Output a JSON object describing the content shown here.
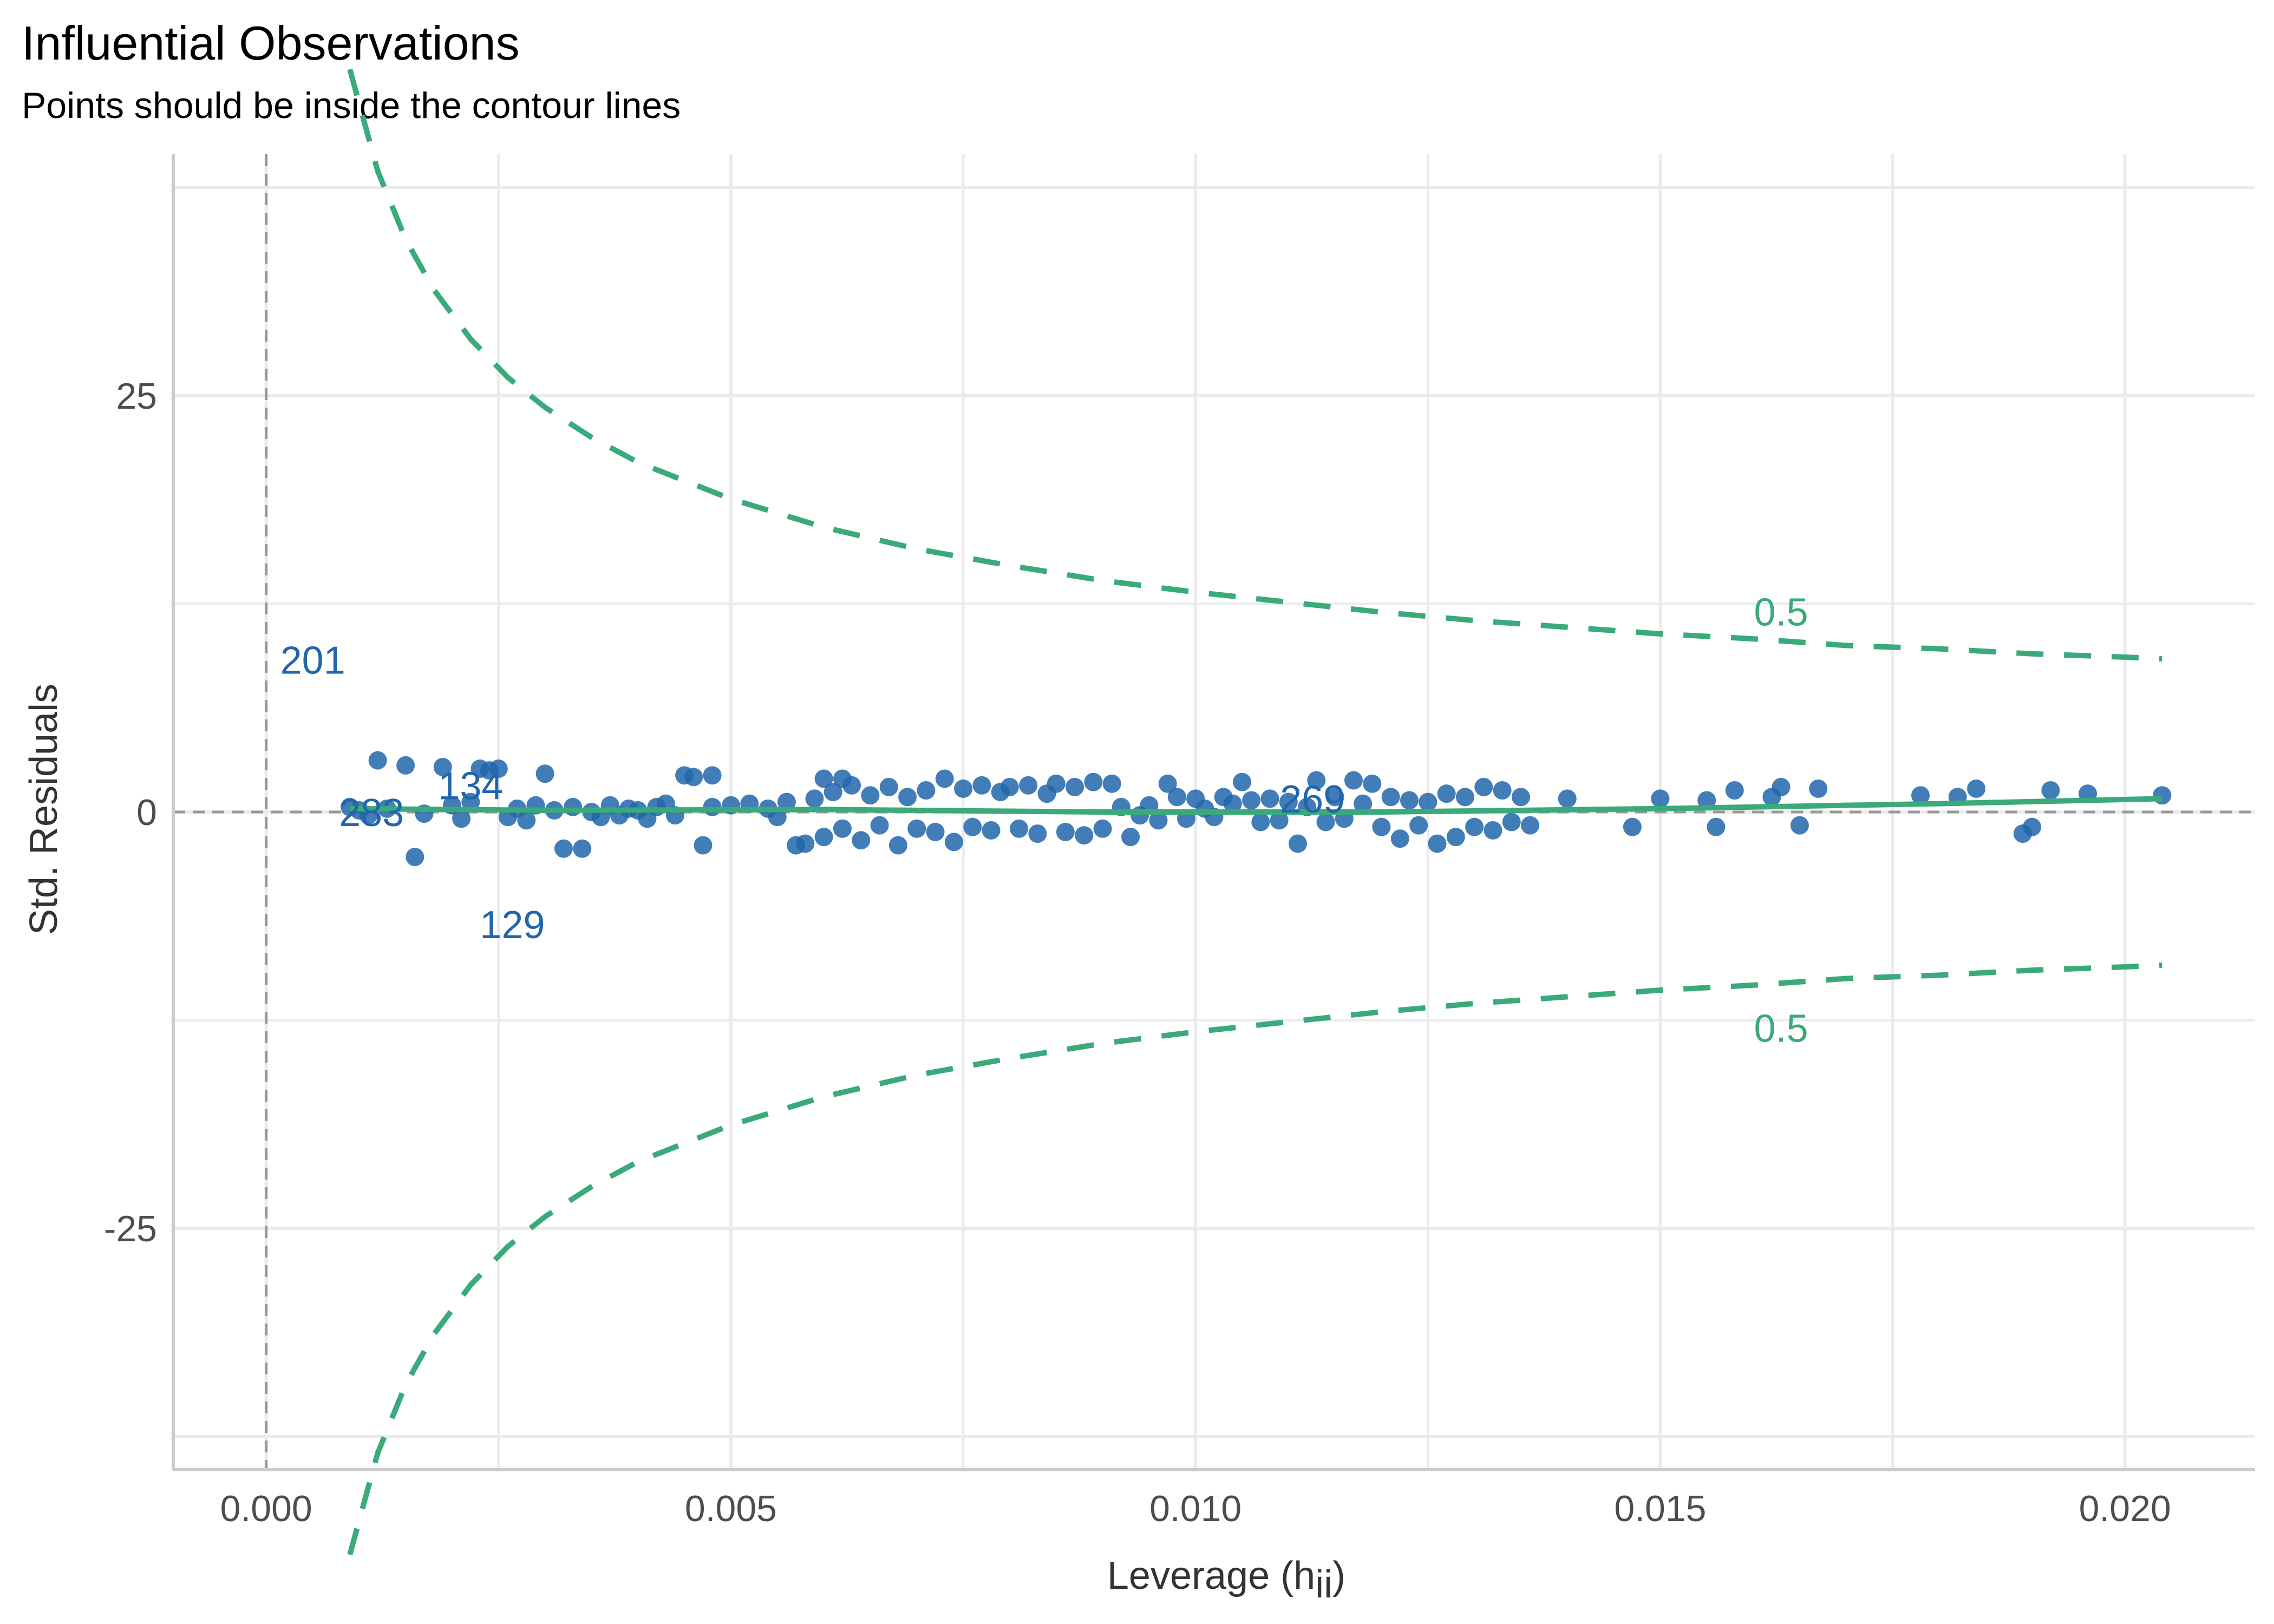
{
  "chart_data": {
    "type": "scatter",
    "title": "Influential Observations",
    "subtitle": "Points should be inside the contour lines",
    "xlabel": "Leverage (h",
    "xlabel_sub": "ii",
    "xlabel_close": ")",
    "ylabel": "Std. Residuals",
    "xlim": [
      -0.001,
      0.0214
    ],
    "ylim": [
      -39.5,
      39.5
    ],
    "x_ticks": [
      0.0,
      0.005,
      0.01,
      0.015,
      0.02
    ],
    "x_tick_labels": [
      "0.000",
      "0.005",
      "0.010",
      "0.015",
      "0.020"
    ],
    "y_ticks": [
      -25,
      0,
      25
    ],
    "y_tick_labels": [
      "-25",
      "0",
      "25"
    ],
    "grid": true,
    "colors": {
      "points": "#2166ac",
      "smooth": "#3aaa7a",
      "contour": "#3aaa7a",
      "reference": "#999999",
      "grid": "#ebebeb",
      "axis": "#cccccc"
    },
    "cook_distance_level": 0.5,
    "contour_labels": [
      "0.5",
      "0.5"
    ],
    "contour": {
      "x": [
        0.0009,
        0.0012,
        0.0015,
        0.0018,
        0.0022,
        0.0026,
        0.003,
        0.0035,
        0.004,
        0.005,
        0.006,
        0.007,
        0.008,
        0.009,
        0.01,
        0.011,
        0.012,
        0.013,
        0.014,
        0.015,
        0.016,
        0.017,
        0.018,
        0.019,
        0.02,
        0.0204
      ],
      "upper": [
        44.6,
        38.5,
        34.4,
        31.4,
        28.4,
        26.1,
        24.3,
        22.5,
        21.0,
        18.8,
        17.1,
        15.8,
        14.8,
        13.9,
        13.2,
        12.6,
        12.0,
        11.5,
        11.1,
        10.7,
        10.4,
        10.0,
        9.8,
        9.5,
        9.3,
        9.2
      ],
      "lower": [
        -44.6,
        -38.5,
        -34.4,
        -31.4,
        -28.4,
        -26.1,
        -24.3,
        -22.5,
        -21.0,
        -18.8,
        -17.1,
        -15.8,
        -14.8,
        -13.9,
        -13.2,
        -12.6,
        -12.0,
        -11.5,
        -11.1,
        -10.7,
        -10.4,
        -10.0,
        -9.8,
        -9.5,
        -9.3,
        -9.2
      ]
    },
    "smooth": {
      "x": [
        0.0009,
        0.003,
        0.006,
        0.009,
        0.012,
        0.015,
        0.018,
        0.0204
      ],
      "y": [
        0.2,
        0.1,
        0.15,
        0.0,
        0.0,
        0.2,
        0.5,
        0.8
      ]
    },
    "points": [
      {
        "x": 0.0009,
        "y": 0.3,
        "label": "283"
      },
      {
        "x": 0.0012,
        "y": 3.1,
        "label": "201"
      },
      {
        "x": 0.0016,
        "y": -2.7,
        "label": "129"
      },
      {
        "x": 0.0022,
        "y": 0.6,
        "label": "134"
      },
      {
        "x": 0.0112,
        "y": 0.3,
        "label": "269"
      },
      {
        "x": 0.001,
        "y": 0.1
      },
      {
        "x": 0.0011,
        "y": -0.2
      },
      {
        "x": 0.0013,
        "y": 0.2
      },
      {
        "x": 0.0015,
        "y": 2.8
      },
      {
        "x": 0.0017,
        "y": -0.1
      },
      {
        "x": 0.0019,
        "y": 2.7
      },
      {
        "x": 0.002,
        "y": 0.4
      },
      {
        "x": 0.0021,
        "y": -0.4
      },
      {
        "x": 0.0023,
        "y": 2.6
      },
      {
        "x": 0.0024,
        "y": 2.5
      },
      {
        "x": 0.0025,
        "y": 2.6
      },
      {
        "x": 0.0026,
        "y": -0.3
      },
      {
        "x": 0.0027,
        "y": 0.2
      },
      {
        "x": 0.0028,
        "y": -0.5
      },
      {
        "x": 0.0029,
        "y": 0.4
      },
      {
        "x": 0.003,
        "y": 2.3
      },
      {
        "x": 0.0031,
        "y": 0.1
      },
      {
        "x": 0.0032,
        "y": -2.2
      },
      {
        "x": 0.0033,
        "y": 0.3
      },
      {
        "x": 0.0034,
        "y": -2.2
      },
      {
        "x": 0.0035,
        "y": 0.0
      },
      {
        "x": 0.0036,
        "y": -0.3
      },
      {
        "x": 0.0037,
        "y": 0.4
      },
      {
        "x": 0.0038,
        "y": -0.2
      },
      {
        "x": 0.0039,
        "y": 0.2
      },
      {
        "x": 0.004,
        "y": 0.1
      },
      {
        "x": 0.0041,
        "y": -0.4
      },
      {
        "x": 0.0042,
        "y": 0.3
      },
      {
        "x": 0.0043,
        "y": 0.5
      },
      {
        "x": 0.0044,
        "y": -0.2
      },
      {
        "x": 0.0045,
        "y": 2.2
      },
      {
        "x": 0.0046,
        "y": 2.1
      },
      {
        "x": 0.0047,
        "y": -2.0
      },
      {
        "x": 0.0048,
        "y": 2.2
      },
      {
        "x": 0.0048,
        "y": 0.3
      },
      {
        "x": 0.005,
        "y": 0.4
      },
      {
        "x": 0.0052,
        "y": 0.5
      },
      {
        "x": 0.0054,
        "y": 0.2
      },
      {
        "x": 0.0055,
        "y": -0.3
      },
      {
        "x": 0.0056,
        "y": 0.6
      },
      {
        "x": 0.0057,
        "y": -2.0
      },
      {
        "x": 0.0058,
        "y": -1.9
      },
      {
        "x": 0.0059,
        "y": 0.8
      },
      {
        "x": 0.006,
        "y": 2.0
      },
      {
        "x": 0.006,
        "y": -1.5
      },
      {
        "x": 0.0061,
        "y": 1.2
      },
      {
        "x": 0.0062,
        "y": -1.0
      },
      {
        "x": 0.0062,
        "y": 2.0
      },
      {
        "x": 0.0063,
        "y": 1.6
      },
      {
        "x": 0.0064,
        "y": -1.7
      },
      {
        "x": 0.0065,
        "y": 1.0
      },
      {
        "x": 0.0066,
        "y": -0.8
      },
      {
        "x": 0.0067,
        "y": 1.5
      },
      {
        "x": 0.0068,
        "y": -2.0
      },
      {
        "x": 0.0069,
        "y": 0.9
      },
      {
        "x": 0.007,
        "y": -1.0
      },
      {
        "x": 0.0071,
        "y": 1.3
      },
      {
        "x": 0.0072,
        "y": -1.2
      },
      {
        "x": 0.0073,
        "y": 2.0
      },
      {
        "x": 0.0074,
        "y": -1.8
      },
      {
        "x": 0.0075,
        "y": 1.4
      },
      {
        "x": 0.0076,
        "y": -0.9
      },
      {
        "x": 0.0077,
        "y": 1.6
      },
      {
        "x": 0.0078,
        "y": -1.1
      },
      {
        "x": 0.0079,
        "y": 1.2
      },
      {
        "x": 0.008,
        "y": 1.5
      },
      {
        "x": 0.0081,
        "y": -1.0
      },
      {
        "x": 0.0082,
        "y": 1.6
      },
      {
        "x": 0.0083,
        "y": -1.3
      },
      {
        "x": 0.0084,
        "y": 1.1
      },
      {
        "x": 0.0085,
        "y": 1.7
      },
      {
        "x": 0.0086,
        "y": -1.2
      },
      {
        "x": 0.0087,
        "y": 1.5
      },
      {
        "x": 0.0088,
        "y": -1.4
      },
      {
        "x": 0.0089,
        "y": 1.8
      },
      {
        "x": 0.009,
        "y": -1.0
      },
      {
        "x": 0.0091,
        "y": 1.7
      },
      {
        "x": 0.0092,
        "y": 0.3
      },
      {
        "x": 0.0093,
        "y": -1.5
      },
      {
        "x": 0.0094,
        "y": -0.2
      },
      {
        "x": 0.0095,
        "y": 0.4
      },
      {
        "x": 0.0096,
        "y": -0.5
      },
      {
        "x": 0.0097,
        "y": 1.7
      },
      {
        "x": 0.0098,
        "y": 0.9
      },
      {
        "x": 0.0099,
        "y": -0.4
      },
      {
        "x": 0.01,
        "y": 0.8
      },
      {
        "x": 0.0101,
        "y": 0.2
      },
      {
        "x": 0.0102,
        "y": -0.3
      },
      {
        "x": 0.0103,
        "y": 0.9
      },
      {
        "x": 0.0104,
        "y": 0.5
      },
      {
        "x": 0.0105,
        "y": 1.8
      },
      {
        "x": 0.0106,
        "y": 0.7
      },
      {
        "x": 0.0107,
        "y": -0.6
      },
      {
        "x": 0.0108,
        "y": 0.8
      },
      {
        "x": 0.0109,
        "y": -0.5
      },
      {
        "x": 0.011,
        "y": 0.6
      },
      {
        "x": 0.0111,
        "y": -1.9
      },
      {
        "x": 0.0113,
        "y": 1.9
      },
      {
        "x": 0.0114,
        "y": -0.6
      },
      {
        "x": 0.0115,
        "y": 0.9
      },
      {
        "x": 0.0116,
        "y": -0.4
      },
      {
        "x": 0.0117,
        "y": 1.9
      },
      {
        "x": 0.0118,
        "y": 0.5
      },
      {
        "x": 0.0119,
        "y": 1.7
      },
      {
        "x": 0.012,
        "y": -0.9
      },
      {
        "x": 0.0121,
        "y": 0.9
      },
      {
        "x": 0.0122,
        "y": -1.6
      },
      {
        "x": 0.0123,
        "y": 0.7
      },
      {
        "x": 0.0124,
        "y": -0.8
      },
      {
        "x": 0.0125,
        "y": 0.6
      },
      {
        "x": 0.0126,
        "y": -1.9
      },
      {
        "x": 0.0127,
        "y": 1.1
      },
      {
        "x": 0.0128,
        "y": -1.5
      },
      {
        "x": 0.0129,
        "y": 0.9
      },
      {
        "x": 0.013,
        "y": -0.9
      },
      {
        "x": 0.0131,
        "y": 1.5
      },
      {
        "x": 0.0132,
        "y": -1.1
      },
      {
        "x": 0.0133,
        "y": 1.3
      },
      {
        "x": 0.0134,
        "y": -0.6
      },
      {
        "x": 0.0135,
        "y": 0.9
      },
      {
        "x": 0.0136,
        "y": -0.8
      },
      {
        "x": 0.014,
        "y": 0.8
      },
      {
        "x": 0.0147,
        "y": -0.9
      },
      {
        "x": 0.015,
        "y": 0.8
      },
      {
        "x": 0.0155,
        "y": 0.7
      },
      {
        "x": 0.0156,
        "y": -0.9
      },
      {
        "x": 0.0158,
        "y": 1.3
      },
      {
        "x": 0.0162,
        "y": 0.9
      },
      {
        "x": 0.0163,
        "y": 1.5
      },
      {
        "x": 0.0165,
        "y": -0.8
      },
      {
        "x": 0.0167,
        "y": 1.4
      },
      {
        "x": 0.0178,
        "y": 1.0
      },
      {
        "x": 0.0182,
        "y": 0.9
      },
      {
        "x": 0.0184,
        "y": 1.4
      },
      {
        "x": 0.0189,
        "y": -1.3
      },
      {
        "x": 0.019,
        "y": -0.9
      },
      {
        "x": 0.0192,
        "y": 1.3
      },
      {
        "x": 0.0196,
        "y": 1.1
      },
      {
        "x": 0.0204,
        "y": 1.0
      }
    ]
  }
}
